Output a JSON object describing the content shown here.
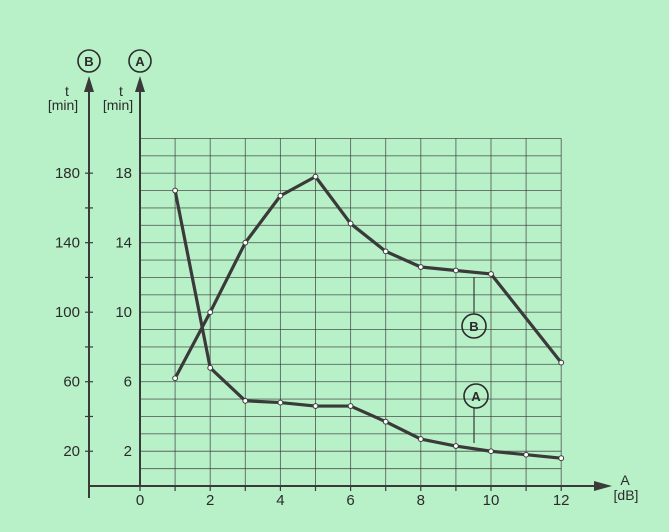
{
  "chart_data": {
    "type": "line",
    "background_color": "#b8f0c8",
    "line_color": "#3a3a3a",
    "grid": true,
    "x": {
      "label_letter": "A",
      "label_unit": "[dB]",
      "range": [
        0,
        12
      ],
      "ticks": [
        0,
        2,
        4,
        6,
        8,
        10,
        12
      ],
      "tick_labels": [
        "0",
        "2",
        "4",
        "6",
        "8",
        "10",
        "12"
      ]
    },
    "y_axes": [
      {
        "id": "B",
        "badge": "B",
        "label_letter": "t",
        "label_unit": "[min]",
        "range": [
          0,
          200
        ],
        "ticks": [
          20,
          60,
          100,
          140,
          180
        ],
        "tick_labels": [
          "20",
          "60",
          "100",
          "140",
          "180"
        ]
      },
      {
        "id": "A",
        "badge": "A",
        "label_letter": "t",
        "label_unit": "[min]",
        "range": [
          0,
          20
        ],
        "ticks": [
          2,
          6,
          10,
          14,
          18
        ],
        "tick_labels": [
          "2",
          "6",
          "10",
          "14",
          "18"
        ]
      }
    ],
    "series": [
      {
        "name": "A",
        "axis": "A",
        "x": [
          1,
          2,
          3,
          4,
          5,
          6,
          7,
          8,
          9,
          10,
          11,
          12
        ],
        "y": [
          17.0,
          6.8,
          4.9,
          4.8,
          4.6,
          4.6,
          3.7,
          2.7,
          2.3,
          2.0,
          1.8,
          1.6
        ]
      },
      {
        "name": "B",
        "axis": "B",
        "x": [
          1,
          2,
          3,
          4,
          5,
          6,
          7,
          8,
          9,
          10,
          11,
          12
        ],
        "y": [
          62,
          100,
          140,
          167,
          178,
          151,
          135,
          126,
          124,
          122,
          null,
          71
        ]
      }
    ]
  }
}
